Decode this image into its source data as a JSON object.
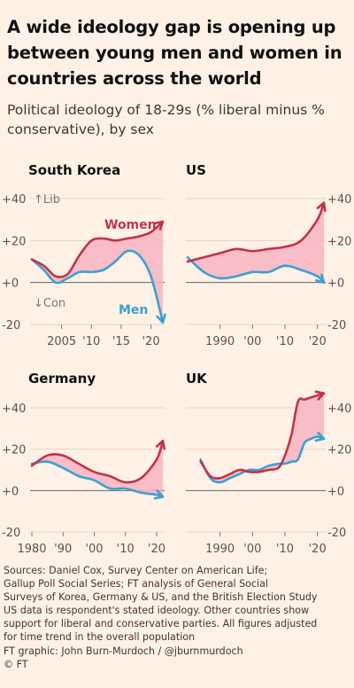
{
  "title": "A wide ideology gap is opening up between young men and women in countries across the world",
  "subtitle": "Political ideology of 18-29s (% liberal minus % conservative), by sex",
  "colors": {
    "women": "#c1334a",
    "men": "#3d9fd1",
    "gap_fill": "#f7b4c2",
    "background": "#fff1e5",
    "zero_line": "#666666",
    "grid": "#e2d5c9"
  },
  "chart_data": [
    {
      "type": "line",
      "panel": "South Korea",
      "title": "South Korea",
      "xlim": [
        2000,
        2022
      ],
      "ylim": [
        -20,
        40
      ],
      "y_ticks": [
        40,
        20,
        0,
        -20
      ],
      "y_tick_labels": [
        "+40",
        "+20",
        "+0",
        "-20"
      ],
      "y_axis_side": "left",
      "x_ticks": [
        2005,
        2010,
        2015,
        2020
      ],
      "x_tick_labels": [
        "2005",
        "'10",
        "'15",
        "'20"
      ],
      "annotations": [
        "↑Lib",
        "↓Con"
      ],
      "series": [
        {
          "name": "Women",
          "x": [
            2000,
            2002,
            2004,
            2006,
            2008,
            2010,
            2012,
            2014,
            2016,
            2018,
            2020,
            2022
          ],
          "y": [
            11,
            8,
            3,
            4,
            13,
            20,
            21,
            20,
            21,
            22,
            24,
            29
          ]
        },
        {
          "name": "Men",
          "x": [
            2000,
            2002,
            2004,
            2006,
            2008,
            2010,
            2012,
            2014,
            2016,
            2018,
            2020,
            2022
          ],
          "y": [
            11,
            6,
            0,
            2,
            5,
            5,
            6,
            10,
            15,
            13,
            3,
            -19
          ]
        }
      ]
    },
    {
      "type": "line",
      "panel": "US",
      "title": "US",
      "xlim": [
        1980,
        2022
      ],
      "ylim": [
        -20,
        40
      ],
      "y_ticks": [
        40,
        20,
        0,
        -20
      ],
      "y_tick_labels": [
        "+40",
        "+20",
        "+0",
        "-20"
      ],
      "y_axis_side": "right",
      "x_ticks": [
        1990,
        2000,
        2010,
        2020
      ],
      "x_tick_labels": [
        "1990",
        "'00",
        "'10",
        "'20"
      ],
      "series": [
        {
          "name": "Women",
          "x": [
            1980,
            1985,
            1990,
            1995,
            2000,
            2005,
            2010,
            2015,
            2020,
            2022
          ],
          "y": [
            10,
            12,
            14,
            16,
            15,
            16,
            17,
            20,
            30,
            38
          ]
        },
        {
          "name": "Men",
          "x": [
            1980,
            1985,
            1990,
            1995,
            2000,
            2005,
            2010,
            2015,
            2020,
            2022
          ],
          "y": [
            12,
            5,
            2,
            3,
            5,
            5,
            8,
            6,
            3,
            0
          ]
        }
      ]
    },
    {
      "type": "line",
      "panel": "Germany",
      "title": "Germany",
      "xlim": [
        1980,
        2022
      ],
      "ylim": [
        -20,
        40
      ],
      "y_ticks": [
        40,
        20,
        0,
        -20
      ],
      "y_tick_labels": [
        "+40",
        "+20",
        "+0",
        "-20"
      ],
      "y_axis_side": "left",
      "x_ticks": [
        1980,
        1990,
        2000,
        2010,
        2020
      ],
      "x_tick_labels": [
        "1980",
        "'90",
        "'00",
        "'10",
        "'20"
      ],
      "series": [
        {
          "name": "Women",
          "x": [
            1980,
            1985,
            1990,
            1995,
            2000,
            2005,
            2010,
            2015,
            2020,
            2022
          ],
          "y": [
            12,
            17,
            17,
            13,
            9,
            7,
            4,
            6,
            15,
            24
          ]
        },
        {
          "name": "Men",
          "x": [
            1980,
            1985,
            1990,
            1995,
            2000,
            2005,
            2010,
            2015,
            2020,
            2022
          ],
          "y": [
            13,
            14,
            11,
            7,
            5,
            1,
            1,
            -1,
            -2,
            -3
          ]
        }
      ]
    },
    {
      "type": "line",
      "panel": "UK",
      "title": "UK",
      "xlim": [
        1980,
        2022
      ],
      "ylim": [
        -20,
        40
      ],
      "y_ticks": [
        40,
        20,
        0,
        -20
      ],
      "y_tick_labels": [
        "+40",
        "+20",
        "+0",
        "-20"
      ],
      "y_axis_side": "right",
      "x_ticks": [
        1990,
        2000,
        2010,
        2020
      ],
      "x_tick_labels": [
        "1990",
        "'00",
        "'10",
        "'20"
      ],
      "series": [
        {
          "name": "Women",
          "x": [
            1984,
            1987,
            1990,
            1993,
            1996,
            1999,
            2002,
            2005,
            2008,
            2010,
            2012,
            2014,
            2016,
            2018,
            2020,
            2022
          ],
          "y": [
            14,
            7,
            6,
            8,
            10,
            9,
            9,
            10,
            11,
            17,
            27,
            43,
            44,
            45,
            46,
            47
          ]
        },
        {
          "name": "Men",
          "x": [
            1984,
            1987,
            1990,
            1993,
            1996,
            1999,
            2002,
            2005,
            2008,
            2010,
            2012,
            2014,
            2016,
            2018,
            2020,
            2022
          ],
          "y": [
            15,
            6,
            4,
            6,
            8,
            10,
            10,
            12,
            13,
            13,
            14,
            15,
            23,
            25,
            26,
            25
          ]
        }
      ]
    }
  ],
  "notes": {
    "line1": "Sources: Daniel Cox, Survey Center on American Life;",
    "line2": "Gallup Poll Social Series; FT analysis of General Social",
    "line3": "Surveys of Korea, Germany & US, and the British Election Study",
    "line4": "US data is respondent's stated ideology. Other countries show",
    "line5": "support for liberal and conservative parties. All figures adjusted",
    "line6": "for time trend in the overall population",
    "line7": "FT graphic: John Burn-Murdoch / @jburnmurdoch",
    "line8": "© FT"
  }
}
